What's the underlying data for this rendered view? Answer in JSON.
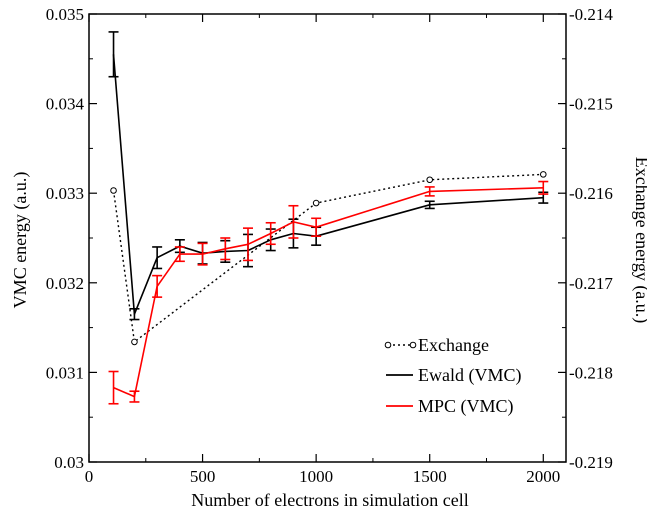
{
  "chart_data": {
    "type": "line",
    "xlabel": "Number of electrons in simulation cell",
    "ylabel": "VMC energy (a.u.)",
    "y2label": "Exchange energy (a.u.)",
    "xlim": [
      0,
      2100
    ],
    "ylim": [
      0.03,
      0.035
    ],
    "y2lim": [
      -0.219,
      -0.214
    ],
    "xticks": [
      0,
      500,
      1000,
      1500,
      2000
    ],
    "yticks": [
      0.03,
      0.031,
      0.032,
      0.033,
      0.034,
      0.035
    ],
    "yticklabels": [
      "0.03",
      "0.031",
      "0.032",
      "0.033",
      "0.034",
      "0.035"
    ],
    "y2ticks": [
      -0.219,
      -0.218,
      -0.217,
      -0.216,
      -0.215,
      -0.214
    ],
    "y2ticklabels": [
      "-0.219",
      "-0.218",
      "-0.217",
      "-0.216",
      "-0.215",
      "-0.214"
    ],
    "grid": false,
    "legend_position": "bottom-right",
    "series": [
      {
        "name": "Exchange",
        "axis": "right",
        "color": "#000000",
        "style": "dotted",
        "marker": "open-circle",
        "x": [
          108,
          200,
          1000,
          1500,
          2000
        ],
        "y": [
          -0.21597,
          -0.21766,
          -0.21611,
          -0.21585,
          -0.21579
        ]
      },
      {
        "name": "Ewald (VMC)",
        "axis": "left",
        "color": "#000000",
        "style": "solid",
        "marker": "errorbar",
        "x": [
          108,
          200,
          300,
          400,
          500,
          600,
          700,
          800,
          900,
          1000,
          1500,
          2000
        ],
        "y": [
          0.03455,
          0.03165,
          0.03228,
          0.03241,
          0.03233,
          0.03235,
          0.03236,
          0.03248,
          0.03255,
          0.03252,
          0.03287,
          0.03295
        ],
        "err": [
          0.00025,
          6e-05,
          0.00012,
          7e-05,
          0.00012,
          0.00012,
          0.00018,
          0.00012,
          0.00016,
          0.0001,
          4e-05,
          6e-05
        ]
      },
      {
        "name": "MPC (VMC)",
        "axis": "left",
        "color": "#ff0000",
        "style": "solid",
        "marker": "errorbar",
        "x": [
          108,
          200,
          300,
          400,
          500,
          600,
          700,
          800,
          900,
          1000,
          1500,
          2000
        ],
        "y": [
          0.03083,
          0.03073,
          0.03196,
          0.03232,
          0.03232,
          0.03238,
          0.03243,
          0.03255,
          0.03268,
          0.03262,
          0.03302,
          0.03306
        ],
        "err": [
          0.00018,
          6e-05,
          0.00012,
          8e-05,
          0.00012,
          0.00012,
          0.00018,
          0.00012,
          0.00018,
          0.0001,
          5e-05,
          7e-05
        ]
      }
    ]
  }
}
